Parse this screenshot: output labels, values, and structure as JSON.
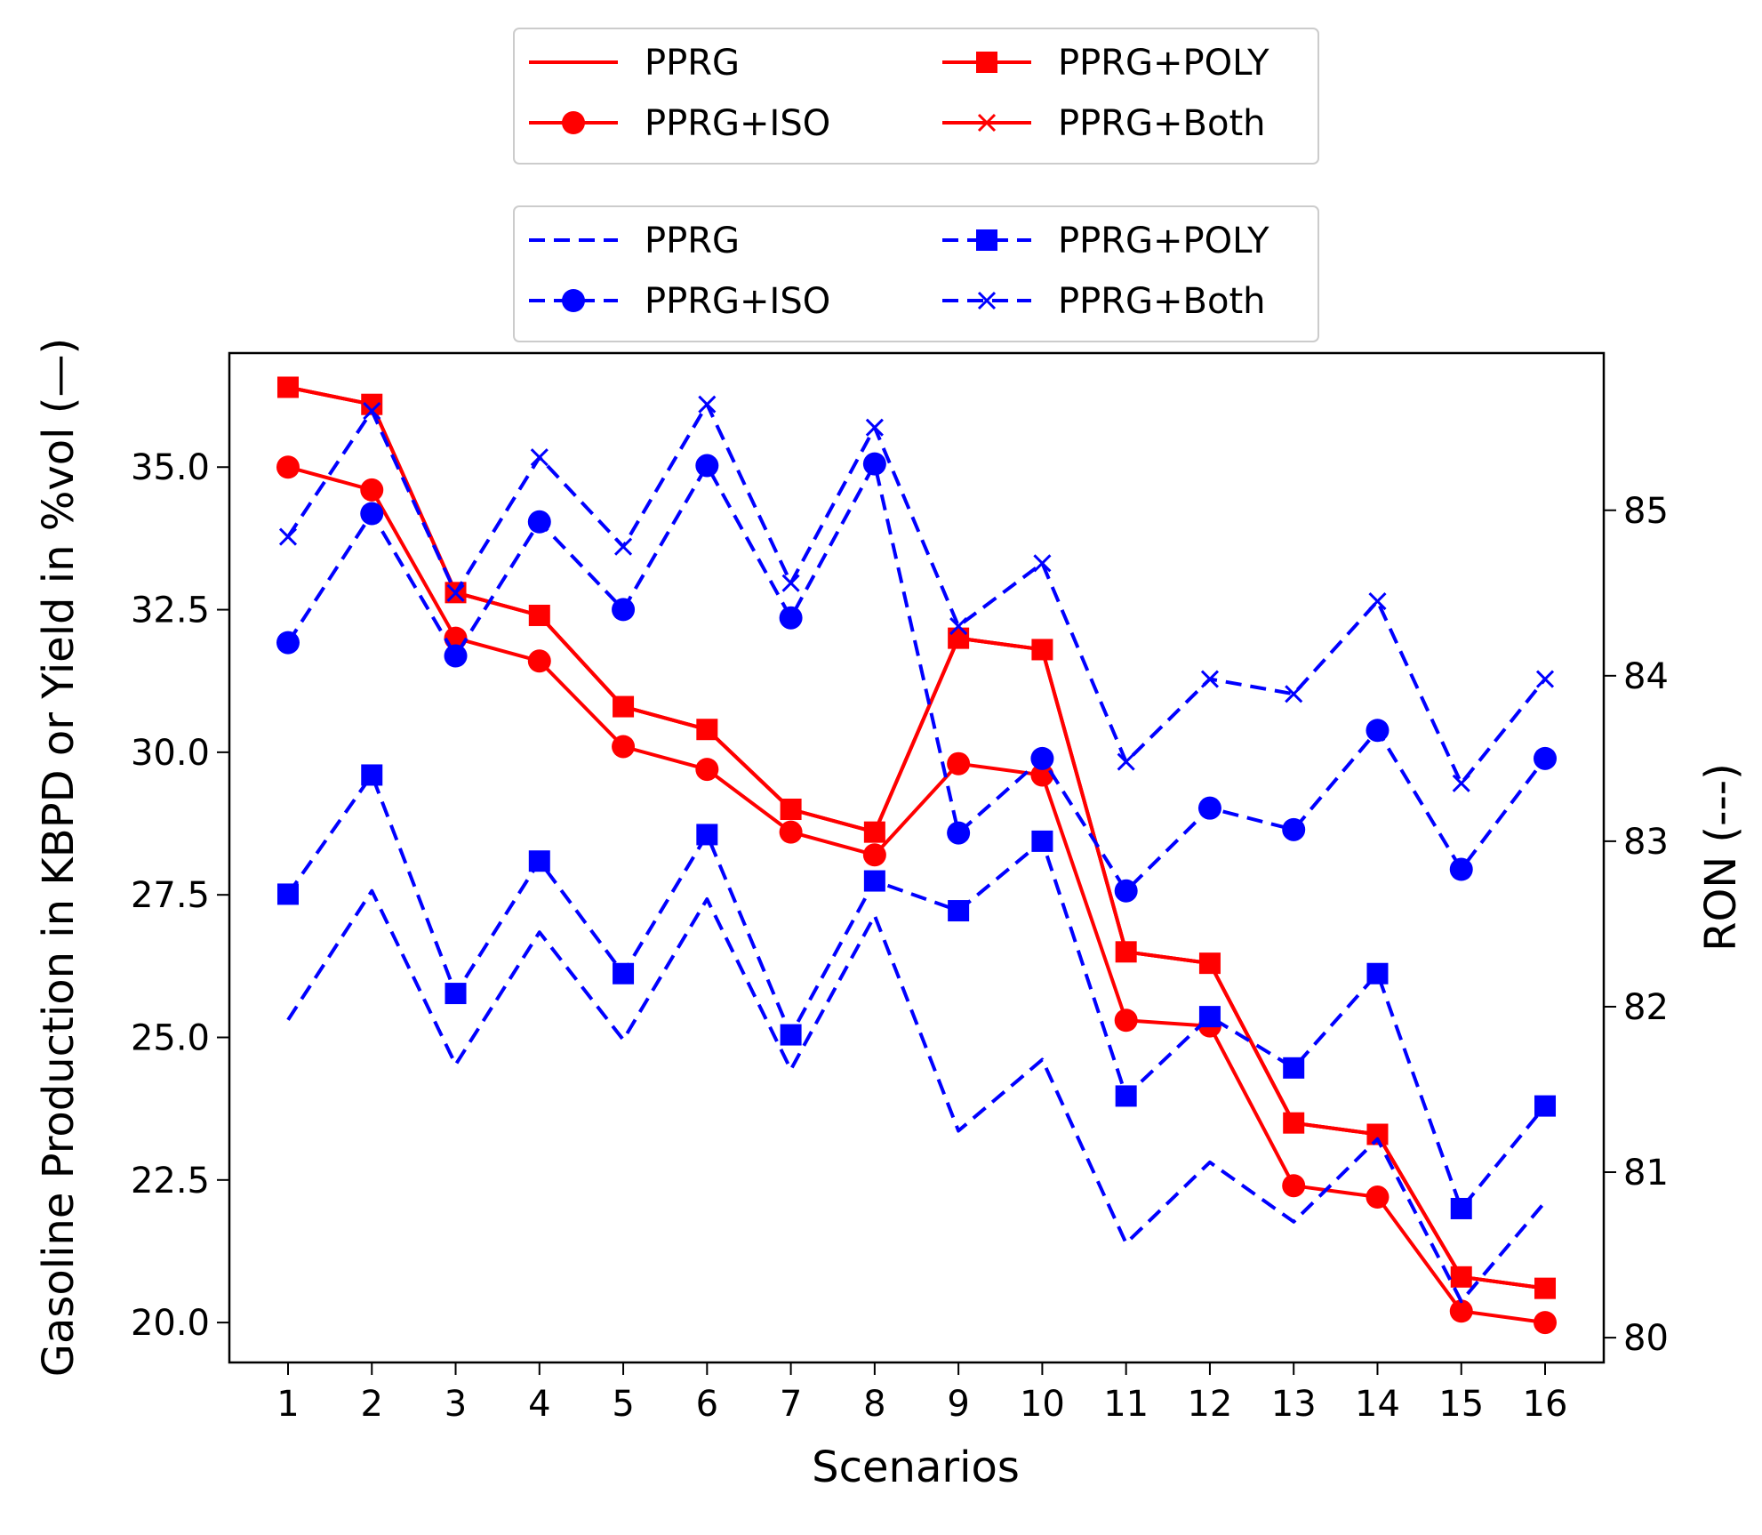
{
  "chart_data": {
    "type": "line",
    "title": "",
    "xlabel": "Scenarios",
    "ylabel_left": "Gasoline Production in KBPD or Yield in %vol (—)",
    "ylabel_right": "RON (---)",
    "x": [
      1,
      2,
      3,
      4,
      5,
      6,
      7,
      8,
      9,
      10,
      11,
      12,
      13,
      14,
      15,
      16
    ],
    "xlim": [
      0.3,
      16.7
    ],
    "ylim_left": [
      19.3,
      37.0
    ],
    "ylim_right": [
      79.85,
      85.95
    ],
    "yticks_left": [
      "20.0",
      "22.5",
      "25.0",
      "27.5",
      "30.0",
      "32.5",
      "35.0"
    ],
    "yticks_right": [
      "80",
      "81",
      "82",
      "83",
      "84",
      "85"
    ],
    "grid": false,
    "colors": {
      "left": "#ff0000",
      "right": "#0000ff"
    },
    "legends": [
      {
        "placement": "top",
        "entries": [
          "PPRG",
          "PPRG+ISO",
          "PPRG+POLY",
          "PPRG+Both"
        ]
      },
      {
        "placement": "below-top",
        "entries": [
          "PPRG",
          "PPRG+ISO",
          "PPRG+POLY",
          "PPRG+Both"
        ]
      }
    ],
    "series": [
      {
        "name": "PPRG",
        "axis": "left",
        "style": "solid",
        "marker": "none",
        "values": [
          36.4,
          36.1,
          32.8,
          32.4,
          30.8,
          30.4,
          29.0,
          28.6,
          32.0,
          31.8,
          26.5,
          26.3,
          23.5,
          23.3,
          20.8,
          20.6
        ]
      },
      {
        "name": "PPRG+ISO",
        "axis": "left",
        "style": "solid",
        "marker": "circle",
        "values": [
          35.0,
          34.6,
          32.0,
          31.6,
          30.1,
          29.7,
          28.6,
          28.2,
          29.8,
          29.6,
          25.3,
          25.2,
          22.4,
          22.2,
          20.2,
          20.0
        ]
      },
      {
        "name": "PPRG+POLY",
        "axis": "left",
        "style": "solid",
        "marker": "square",
        "values": [
          36.4,
          36.1,
          32.8,
          32.4,
          30.8,
          30.4,
          29.0,
          28.6,
          32.0,
          31.8,
          26.5,
          26.3,
          23.5,
          23.3,
          20.8,
          20.6
        ]
      },
      {
        "name": "PPRG+Both",
        "axis": "left",
        "style": "solid",
        "marker": "x",
        "values": [
          36.4,
          36.1,
          32.8,
          32.4,
          30.8,
          30.4,
          29.0,
          28.6,
          32.0,
          31.8,
          26.5,
          26.3,
          23.5,
          23.3,
          20.8,
          20.6
        ]
      },
      {
        "name": "PPRG",
        "axis": "right",
        "style": "dashed",
        "marker": "none",
        "values": [
          81.92,
          82.7,
          81.65,
          82.45,
          81.8,
          82.65,
          81.62,
          82.55,
          81.25,
          81.68,
          80.57,
          81.06,
          80.7,
          81.2,
          80.22,
          80.82
        ]
      },
      {
        "name": "PPRG+ISO",
        "axis": "right",
        "style": "dashed",
        "marker": "circle",
        "values": [
          84.2,
          84.98,
          84.12,
          84.93,
          84.4,
          85.27,
          84.35,
          85.28,
          83.05,
          83.5,
          82.7,
          83.2,
          83.07,
          83.67,
          82.83,
          83.5
        ]
      },
      {
        "name": "PPRG+POLY",
        "axis": "right",
        "style": "dashed",
        "marker": "square",
        "values": [
          82.68,
          83.4,
          82.08,
          82.88,
          82.2,
          83.04,
          81.83,
          82.76,
          82.58,
          83.0,
          81.46,
          81.94,
          81.63,
          82.2,
          80.78,
          81.4
        ]
      },
      {
        "name": "PPRG+Both",
        "axis": "right",
        "style": "dashed",
        "marker": "x",
        "values": [
          84.84,
          85.6,
          84.5,
          85.32,
          84.78,
          85.64,
          84.56,
          85.5,
          84.3,
          84.68,
          83.48,
          83.98,
          83.89,
          84.45,
          83.35,
          83.98
        ]
      }
    ]
  }
}
